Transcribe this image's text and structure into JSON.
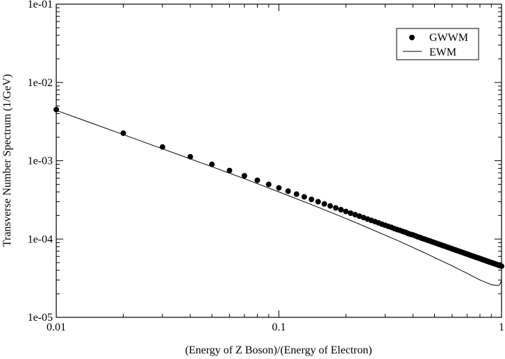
{
  "chart_data": {
    "type": "scatter",
    "title": "",
    "xlabel": "(Energy of Z Boson)/(Energy of Electron)",
    "ylabel": "Transverse Number Spectrum (1/GeV)",
    "xscale": "log",
    "yscale": "log",
    "xlim": [
      0.01,
      1
    ],
    "ylim": [
      1e-05,
      0.1
    ],
    "x_ticks": [
      0.01,
      0.1,
      1
    ],
    "x_tick_labels": [
      "0.01",
      "0.1",
      "1"
    ],
    "y_ticks": [
      1e-05,
      0.0001,
      0.001,
      0.01,
      0.1
    ],
    "y_tick_labels": [
      "1e-05",
      "1e-04",
      "1e-03",
      "1e-02",
      "1e-01"
    ],
    "grid": false,
    "legend_position": "top-right",
    "legend": [
      "GWWM",
      "EWM"
    ],
    "series": [
      {
        "name": "GWWM",
        "style": "markers",
        "color": "#000000",
        "x": [
          0.01,
          0.02,
          0.03,
          0.04,
          0.05,
          0.06,
          0.07,
          0.08,
          0.09,
          0.1,
          0.11,
          0.12,
          0.13,
          0.14,
          0.15,
          0.16,
          0.17,
          0.18,
          0.19,
          0.2,
          0.21,
          0.22,
          0.23,
          0.24,
          0.25,
          0.26,
          0.27,
          0.28,
          0.29,
          0.3,
          0.31,
          0.32,
          0.33,
          0.34,
          0.35,
          0.36,
          0.37,
          0.38,
          0.39,
          0.4,
          0.41,
          0.42,
          0.43,
          0.44,
          0.45,
          0.46,
          0.47,
          0.48,
          0.49,
          0.5,
          0.51,
          0.52,
          0.53,
          0.54,
          0.55,
          0.56,
          0.57,
          0.58,
          0.59,
          0.6,
          0.61,
          0.62,
          0.63,
          0.64,
          0.65,
          0.66,
          0.67,
          0.68,
          0.69,
          0.7,
          0.71,
          0.72,
          0.73,
          0.74,
          0.75,
          0.76,
          0.77,
          0.78,
          0.79,
          0.8,
          0.81,
          0.82,
          0.83,
          0.84,
          0.85,
          0.86,
          0.87,
          0.88,
          0.89,
          0.9,
          0.91,
          0.92,
          0.93,
          0.94,
          0.95,
          0.96,
          0.97,
          0.98,
          0.99,
          1.0
        ],
        "y": [
          0.0045,
          0.00225,
          0.0015,
          0.001125,
          0.0009,
          0.00075,
          0.000643,
          0.000563,
          0.0005,
          0.00045,
          0.000409,
          0.000375,
          0.000346,
          0.000321,
          0.0003,
          0.000281,
          0.000265,
          0.00025,
          0.000237,
          0.000225,
          0.000214,
          0.000205,
          0.000196,
          0.000188,
          0.00018,
          0.000173,
          0.000167,
          0.000161,
          0.000155,
          0.00015,
          0.000145,
          0.000141,
          0.000136,
          0.000132,
          0.000129,
          0.000125,
          0.000122,
          0.000118,
          0.000115,
          0.000113,
          0.00011,
          0.000107,
          0.000105,
          0.000102,
          0.0001,
          9.78e-05,
          9.57e-05,
          9.38e-05,
          9.18e-05,
          9e-05,
          8.82e-05,
          8.65e-05,
          8.49e-05,
          8.33e-05,
          8.18e-05,
          8.04e-05,
          7.89e-05,
          7.76e-05,
          7.63e-05,
          7.5e-05,
          7.38e-05,
          7.26e-05,
          7.14e-05,
          7.03e-05,
          6.92e-05,
          6.82e-05,
          6.72e-05,
          6.62e-05,
          6.52e-05,
          6.43e-05,
          6.34e-05,
          6.25e-05,
          6.16e-05,
          6.08e-05,
          6e-05,
          5.92e-05,
          5.84e-05,
          5.77e-05,
          5.7e-05,
          5.63e-05,
          5.56e-05,
          5.49e-05,
          5.42e-05,
          5.36e-05,
          5.29e-05,
          5.23e-05,
          5.17e-05,
          5.11e-05,
          5.06e-05,
          5e-05,
          4.95e-05,
          4.89e-05,
          4.84e-05,
          4.79e-05,
          4.74e-05,
          4.69e-05,
          4.64e-05,
          4.59e-05,
          4.55e-05,
          4.5e-05
        ]
      },
      {
        "name": "EWM",
        "style": "line",
        "color": "#000000",
        "x": [
          0.01,
          0.02,
          0.03,
          0.05,
          0.07,
          0.1,
          0.15,
          0.2,
          0.25,
          0.3,
          0.35,
          0.4,
          0.45,
          0.5,
          0.55,
          0.6,
          0.65,
          0.7,
          0.75,
          0.8,
          0.85,
          0.9,
          0.93,
          0.95,
          0.97,
          0.98,
          0.99,
          1.0
        ],
        "y": [
          0.0044,
          0.00216,
          0.00142,
          0.00084,
          0.00059,
          0.0004,
          0.000255,
          0.000183,
          0.00014,
          0.000112,
          9.3e-05,
          7.8e-05,
          6.7e-05,
          5.8e-05,
          5.1e-05,
          4.55e-05,
          4.05e-05,
          3.65e-05,
          3.3e-05,
          3e-05,
          2.8e-05,
          2.62e-05,
          2.58e-05,
          2.55e-05,
          2.55e-05,
          2.6e-05,
          2.75e-05,
          3e-05
        ]
      }
    ]
  }
}
